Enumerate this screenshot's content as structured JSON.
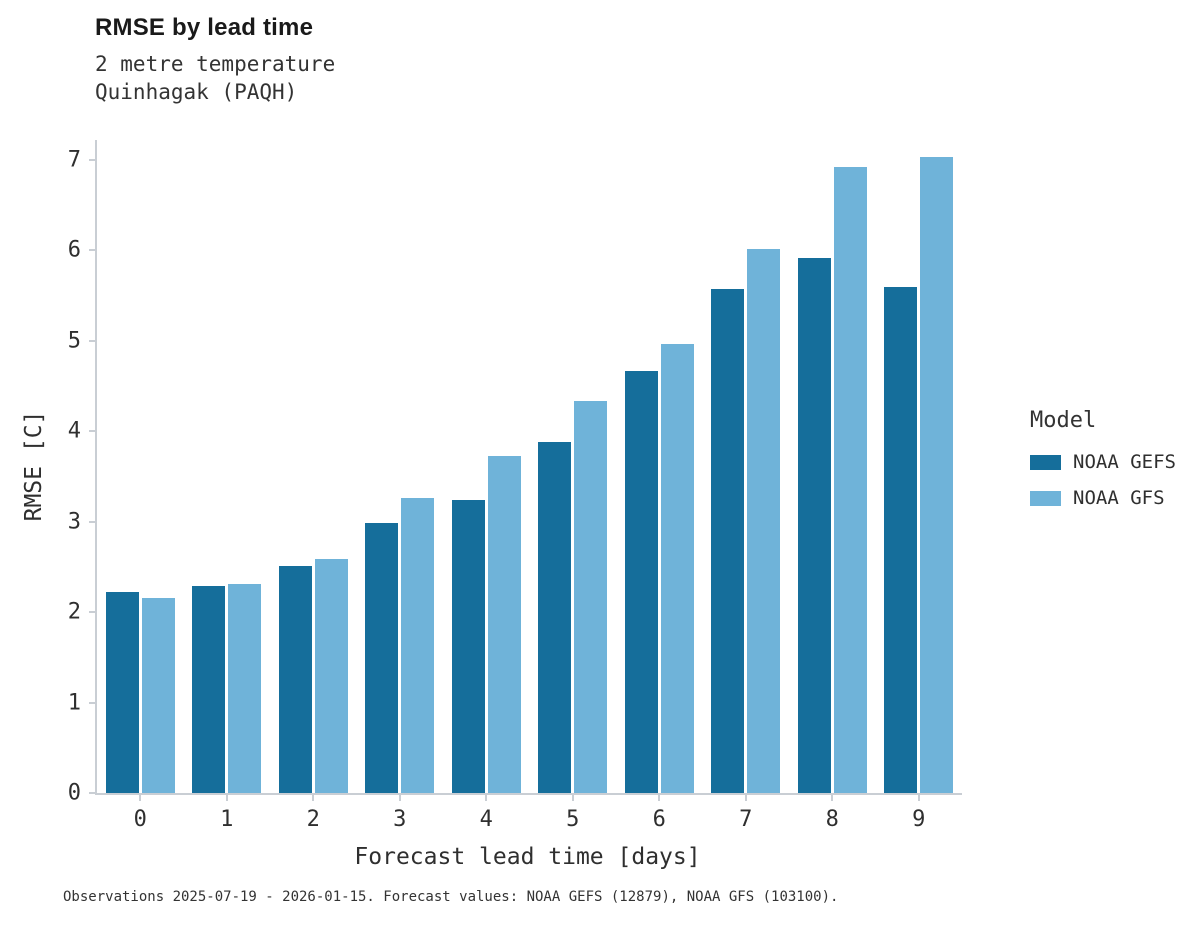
{
  "chart_data": {
    "type": "bar",
    "title": "RMSE by lead time",
    "subtitle": [
      "2 metre temperature",
      "Quinhagak (PAQH)"
    ],
    "xlabel": "Forecast lead time [days]",
    "ylabel": "RMSE [C]",
    "categories": [
      "0",
      "1",
      "2",
      "3",
      "4",
      "5",
      "6",
      "7",
      "8",
      "9"
    ],
    "series": [
      {
        "name": "NOAA GEFS",
        "color": "#156e9b",
        "values": [
          2.22,
          2.29,
          2.51,
          2.99,
          3.24,
          3.88,
          4.67,
          5.57,
          5.91,
          5.59
        ]
      },
      {
        "name": "NOAA GFS",
        "color": "#6fb3d9",
        "values": [
          2.16,
          2.31,
          2.59,
          3.26,
          3.73,
          4.33,
          4.96,
          6.02,
          6.92,
          7.03
        ]
      }
    ],
    "ylim": [
      0,
      7.22
    ],
    "yticks": [
      0,
      1,
      2,
      3,
      4,
      5,
      6,
      7
    ],
    "legend_title": "Model",
    "legend_position": "right",
    "grid": false,
    "caption": "Observations 2025-07-19 - 2026-01-15. Forecast values: NOAA GEFS (12879), NOAA GFS (103100)."
  }
}
